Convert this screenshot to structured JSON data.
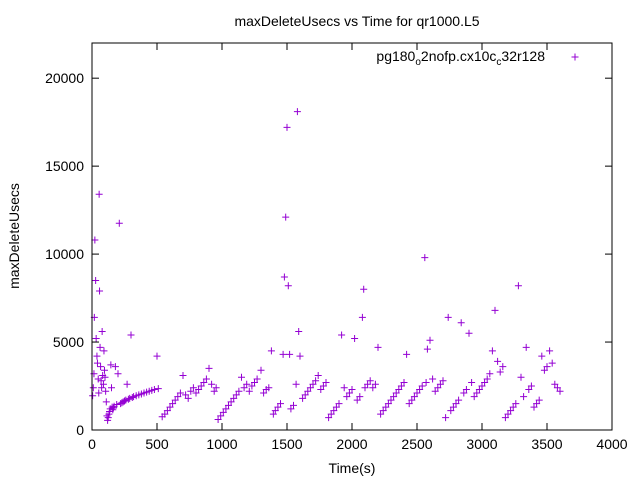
{
  "chart_data": {
    "type": "scatter",
    "title": "maxDeleteUsecs vs Time for qr1000.L5",
    "xlabel": "Time(s)",
    "ylabel": "maxDeleteUsecs",
    "xlim": [
      0,
      4000
    ],
    "ylim": [
      0,
      22000
    ],
    "x_ticks": [
      "0",
      "500",
      "1000",
      "1500",
      "2000",
      "2500",
      "3000",
      "3500",
      "4000"
    ],
    "y_ticks": [
      "0",
      "5000",
      "10000",
      "15000",
      "20000"
    ],
    "grid": false,
    "legend_position": "top-right",
    "colors": {
      "series": "#9400d3",
      "axis": "#000000"
    },
    "legend": {
      "parts": [
        {
          "text": "pg180",
          "sub": false
        },
        {
          "text": "o",
          "sub": true
        },
        {
          "text": "2nofp.cx10c",
          "sub": false
        },
        {
          "text": "c",
          "sub": true
        },
        {
          "text": "32r128",
          "sub": false
        }
      ]
    },
    "series": [
      {
        "marker": "+",
        "points": [
          [
            5,
            1950
          ],
          [
            10,
            2400
          ],
          [
            15,
            3200
          ],
          [
            18,
            6400
          ],
          [
            22,
            10800
          ],
          [
            28,
            8500
          ],
          [
            32,
            5200
          ],
          [
            38,
            4200
          ],
          [
            42,
            3800
          ],
          [
            48,
            2900
          ],
          [
            52,
            2100
          ],
          [
            55,
            13400
          ],
          [
            58,
            7900
          ],
          [
            62,
            4700
          ],
          [
            66,
            3600
          ],
          [
            70,
            2800
          ],
          [
            74,
            2400
          ],
          [
            78,
            5600
          ],
          [
            82,
            3100
          ],
          [
            88,
            2600
          ],
          [
            92,
            4500
          ],
          [
            96,
            3400
          ],
          [
            100,
            3000
          ],
          [
            105,
            2200
          ],
          [
            110,
            1600
          ],
          [
            115,
            800
          ],
          [
            120,
            550
          ],
          [
            125,
            700
          ],
          [
            130,
            900
          ],
          [
            135,
            1050
          ],
          [
            140,
            1200
          ],
          [
            145,
            3700
          ],
          [
            150,
            2400
          ],
          [
            155,
            1300
          ],
          [
            160,
            1150
          ],
          [
            165,
            1250
          ],
          [
            170,
            1350
          ],
          [
            180,
            3600
          ],
          [
            190,
            1450
          ],
          [
            200,
            3200
          ],
          [
            210,
            11750
          ],
          [
            220,
            1500
          ],
          [
            230,
            1550
          ],
          [
            240,
            1600
          ],
          [
            250,
            1650
          ],
          [
            260,
            1700
          ],
          [
            270,
            2600
          ],
          [
            280,
            1750
          ],
          [
            290,
            1800
          ],
          [
            300,
            5400
          ],
          [
            310,
            1850
          ],
          [
            320,
            1900
          ],
          [
            340,
            1950
          ],
          [
            360,
            2000
          ],
          [
            380,
            2050
          ],
          [
            400,
            2100
          ],
          [
            420,
            2150
          ],
          [
            440,
            2200
          ],
          [
            460,
            2250
          ],
          [
            480,
            2300
          ],
          [
            500,
            4200
          ],
          [
            510,
            2350
          ],
          [
            540,
            750
          ],
          [
            560,
            900
          ],
          [
            580,
            1100
          ],
          [
            600,
            1300
          ],
          [
            620,
            1500
          ],
          [
            640,
            1700
          ],
          [
            660,
            1900
          ],
          [
            680,
            2100
          ],
          [
            700,
            3100
          ],
          [
            720,
            2000
          ],
          [
            740,
            1800
          ],
          [
            760,
            2200
          ],
          [
            780,
            2400
          ],
          [
            800,
            2100
          ],
          [
            820,
            2300
          ],
          [
            840,
            2500
          ],
          [
            860,
            2700
          ],
          [
            880,
            2900
          ],
          [
            900,
            3500
          ],
          [
            920,
            2600
          ],
          [
            940,
            2200
          ],
          [
            955,
            2400
          ],
          [
            970,
            600
          ],
          [
            990,
            800
          ],
          [
            1010,
            1000
          ],
          [
            1030,
            1200
          ],
          [
            1050,
            1400
          ],
          [
            1070,
            1600
          ],
          [
            1090,
            1800
          ],
          [
            1110,
            2000
          ],
          [
            1130,
            2200
          ],
          [
            1150,
            3000
          ],
          [
            1170,
            2400
          ],
          [
            1190,
            2600
          ],
          [
            1210,
            2200
          ],
          [
            1230,
            2500
          ],
          [
            1250,
            2700
          ],
          [
            1270,
            2900
          ],
          [
            1300,
            3400
          ],
          [
            1320,
            2100
          ],
          [
            1340,
            2300
          ],
          [
            1360,
            2400
          ],
          [
            1380,
            4500
          ],
          [
            1395,
            900
          ],
          [
            1410,
            1100
          ],
          [
            1430,
            1300
          ],
          [
            1450,
            1500
          ],
          [
            1470,
            4300
          ],
          [
            1480,
            8700
          ],
          [
            1490,
            12100
          ],
          [
            1500,
            17200
          ],
          [
            1510,
            8200
          ],
          [
            1520,
            4300
          ],
          [
            1530,
            1200
          ],
          [
            1550,
            1400
          ],
          [
            1570,
            2600
          ],
          [
            1580,
            18100
          ],
          [
            1590,
            5600
          ],
          [
            1600,
            4200
          ],
          [
            1620,
            1800
          ],
          [
            1640,
            2000
          ],
          [
            1660,
            2200
          ],
          [
            1680,
            2400
          ],
          [
            1700,
            2600
          ],
          [
            1720,
            2800
          ],
          [
            1740,
            3100
          ],
          [
            1760,
            2300
          ],
          [
            1780,
            2500
          ],
          [
            1800,
            2700
          ],
          [
            1820,
            700
          ],
          [
            1840,
            900
          ],
          [
            1860,
            1100
          ],
          [
            1880,
            1300
          ],
          [
            1900,
            1500
          ],
          [
            1920,
            5400
          ],
          [
            1940,
            2400
          ],
          [
            1960,
            1900
          ],
          [
            1980,
            2100
          ],
          [
            2000,
            2300
          ],
          [
            2020,
            5200
          ],
          [
            2040,
            1700
          ],
          [
            2060,
            1900
          ],
          [
            2080,
            6400
          ],
          [
            2090,
            8000
          ],
          [
            2100,
            2400
          ],
          [
            2120,
            2600
          ],
          [
            2140,
            2800
          ],
          [
            2160,
            2400
          ],
          [
            2180,
            2600
          ],
          [
            2200,
            4700
          ],
          [
            2220,
            900
          ],
          [
            2240,
            1100
          ],
          [
            2260,
            1300
          ],
          [
            2280,
            1500
          ],
          [
            2300,
            1700
          ],
          [
            2320,
            1900
          ],
          [
            2340,
            2100
          ],
          [
            2360,
            2300
          ],
          [
            2380,
            2500
          ],
          [
            2400,
            2700
          ],
          [
            2420,
            4300
          ],
          [
            2440,
            1500
          ],
          [
            2460,
            1700
          ],
          [
            2480,
            1900
          ],
          [
            2500,
            2100
          ],
          [
            2520,
            2300
          ],
          [
            2540,
            2500
          ],
          [
            2560,
            9800
          ],
          [
            2570,
            2700
          ],
          [
            2580,
            4600
          ],
          [
            2600,
            5100
          ],
          [
            2620,
            2900
          ],
          [
            2640,
            2200
          ],
          [
            2660,
            2400
          ],
          [
            2680,
            2600
          ],
          [
            2700,
            2800
          ],
          [
            2720,
            700
          ],
          [
            2740,
            6400
          ],
          [
            2760,
            1100
          ],
          [
            2780,
            1300
          ],
          [
            2800,
            1500
          ],
          [
            2820,
            1700
          ],
          [
            2840,
            6100
          ],
          [
            2860,
            2100
          ],
          [
            2880,
            2300
          ],
          [
            2900,
            5500
          ],
          [
            2920,
            2700
          ],
          [
            2940,
            1900
          ],
          [
            2960,
            2100
          ],
          [
            2980,
            2300
          ],
          [
            3000,
            2500
          ],
          [
            3020,
            2700
          ],
          [
            3040,
            2900
          ],
          [
            3060,
            3200
          ],
          [
            3080,
            4500
          ],
          [
            3100,
            6800
          ],
          [
            3120,
            3900
          ],
          [
            3140,
            3300
          ],
          [
            3160,
            3600
          ],
          [
            3180,
            700
          ],
          [
            3200,
            900
          ],
          [
            3220,
            1100
          ],
          [
            3240,
            1300
          ],
          [
            3260,
            1500
          ],
          [
            3280,
            8200
          ],
          [
            3300,
            3000
          ],
          [
            3320,
            1900
          ],
          [
            3340,
            4700
          ],
          [
            3360,
            2300
          ],
          [
            3380,
            2500
          ],
          [
            3400,
            1300
          ],
          [
            3420,
            1500
          ],
          [
            3440,
            1700
          ],
          [
            3460,
            4200
          ],
          [
            3480,
            3400
          ],
          [
            3500,
            3600
          ],
          [
            3520,
            4500
          ],
          [
            3540,
            3800
          ],
          [
            3560,
            2600
          ],
          [
            3580,
            2400
          ],
          [
            3600,
            2200
          ]
        ]
      }
    ]
  }
}
